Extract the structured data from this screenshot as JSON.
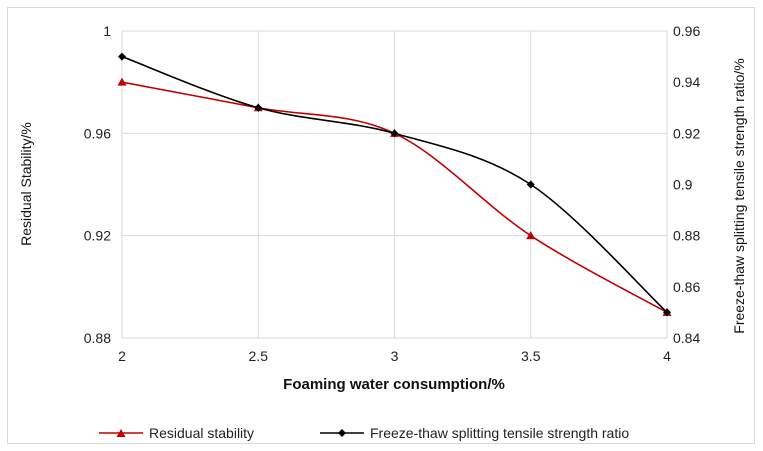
{
  "chart_data": {
    "type": "line",
    "x": [
      2,
      2.5,
      3,
      3.5,
      4
    ],
    "xlabel": "Foaming water consumption/%",
    "ylabel_left": "Residual Stability/%",
    "ylabel_right": "Freeze-thaw splitting tensile strength ratio/%",
    "xlim": [
      2,
      4
    ],
    "ylim_left": [
      0.88,
      1
    ],
    "ylim_right": [
      0.84,
      0.96
    ],
    "x_ticks": [
      "2",
      "2.5",
      "3",
      "3.5",
      "4"
    ],
    "y_left_ticks": [
      "0.88",
      "0.92",
      "0.96",
      "1"
    ],
    "y_right_ticks": [
      "0.84",
      "0.86",
      "0.88",
      "0.9",
      "0.92",
      "0.94",
      "0.96"
    ],
    "grid": true,
    "legend_position": "bottom",
    "series": [
      {
        "name": "Residual stability",
        "axis": "left",
        "marker": "triangle",
        "color": "#c00000",
        "values": [
          0.98,
          0.97,
          0.96,
          0.92,
          0.89
        ]
      },
      {
        "name": "Freeze-thaw splitting tensile strength ratio",
        "axis": "right",
        "marker": "diamond",
        "color": "#000000",
        "values": [
          0.95,
          0.93,
          0.92,
          0.9,
          0.85
        ]
      }
    ]
  }
}
